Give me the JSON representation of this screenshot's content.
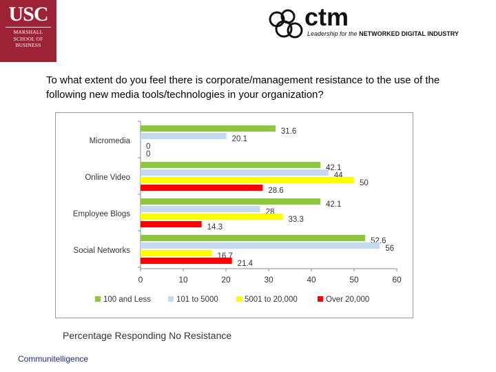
{
  "header": {
    "usc_logo": {
      "main": "USC",
      "lines": [
        "MARSHALL",
        "SCHOOL OF",
        "BUSINESS"
      ]
    },
    "ctm_logo": {
      "wordmark": "ctm",
      "tagline_italic": "Leadership for the",
      "tagline_bold": "NETWORKED DIGITAL INDUSTRY"
    }
  },
  "question": "To what extent do you feel there is corporate/management resistance to the use of the following new media tools/technologies in your organization?",
  "caption": "Percentage Responding No Resistance",
  "footer": "Communitelligence",
  "chart_data": {
    "type": "bar",
    "orientation": "horizontal",
    "categories": [
      "Micromedia",
      "Online Video",
      "Employee Blogs",
      "Social Networks"
    ],
    "series": [
      {
        "name": "100 and Less",
        "color": "#8dc63f",
        "values": [
          31.6,
          42.1,
          42.1,
          52.6
        ]
      },
      {
        "name": "101 to 5000",
        "color": "#c6d9f1",
        "values": [
          20.1,
          44,
          28,
          56
        ]
      },
      {
        "name": "5001 to 20,000",
        "color": "#ffff00",
        "values": [
          0,
          50,
          33.3,
          16.7
        ]
      },
      {
        "name": "Over 20,000",
        "color": "#ff0000",
        "values": [
          0,
          28.6,
          14.3,
          21.4
        ]
      }
    ],
    "xlim": [
      0,
      60
    ],
    "xticks": [
      0,
      10,
      20,
      30,
      40,
      50,
      60
    ],
    "grid": false,
    "legend": "bottom",
    "data_labels": true
  }
}
